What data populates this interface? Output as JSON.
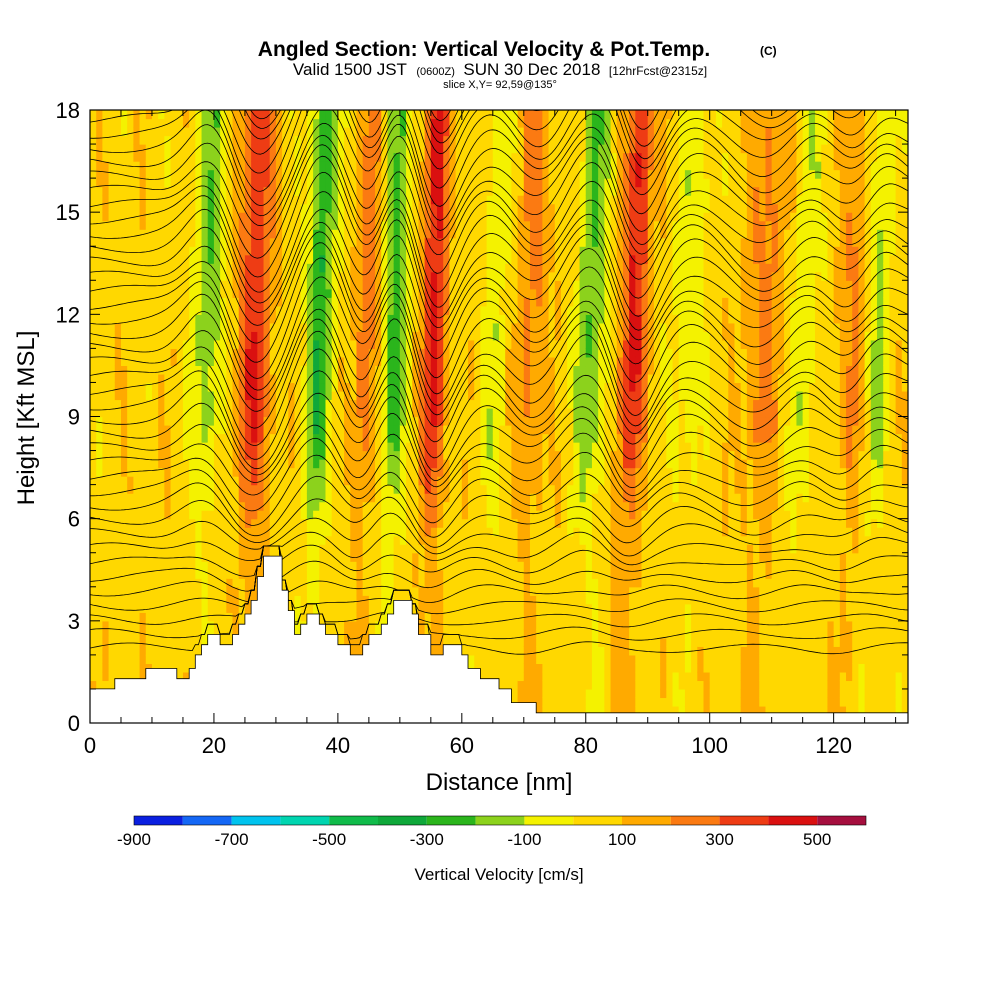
{
  "chart_data": {
    "type": "heatmap",
    "title": "Angled Section: Vertical Velocity & Pot.Temp.",
    "title_mark": "(C)",
    "subtitle_prefix": "Valid 1500 JST",
    "subtitle_utc": "(0600Z)",
    "subtitle_date": "SUN 30 Dec 2018",
    "subtitle_fcst": "[12hrFcst@2315z]",
    "slice_label": "slice X,Y= 92,59@135°",
    "xlabel": "Distance [nm]",
    "ylabel": "Height [Kft MSL]",
    "xlim": [
      0,
      132
    ],
    "ylim": [
      0,
      18
    ],
    "x_ticks": [
      0,
      20,
      40,
      60,
      80,
      100,
      120
    ],
    "y_ticks": [
      0,
      3,
      6,
      9,
      12,
      15,
      18
    ],
    "colorbar": {
      "title": "Vertical Velocity [cm/s]",
      "labels": [
        "-900",
        "-700",
        "-500",
        "-300",
        "-100",
        "100",
        "300",
        "500"
      ],
      "label_values": [
        -900,
        -700,
        -500,
        -300,
        -100,
        100,
        300,
        500
      ],
      "boundaries": [
        -900,
        -800,
        -700,
        -600,
        -500,
        -400,
        -300,
        -200,
        -100,
        0,
        100,
        200,
        300,
        400,
        500,
        600
      ],
      "colors": [
        "#0a1fe0",
        "#1467f5",
        "#00c3ee",
        "#00d5b0",
        "#10bb4a",
        "#0fa83a",
        "#2bb51c",
        "#8cd21c",
        "#f4f200",
        "#ffd800",
        "#ffaa00",
        "#fb7a12",
        "#ee3c14",
        "#da1010",
        "#a50f3e",
        "#6a1296"
      ]
    },
    "terrain_kft": [
      [
        0,
        1.0
      ],
      [
        4,
        1.0
      ],
      [
        4,
        1.3
      ],
      [
        9,
        1.3
      ],
      [
        9,
        1.6
      ],
      [
        14,
        1.6
      ],
      [
        14,
        1.3
      ],
      [
        16,
        1.3
      ],
      [
        16,
        1.6
      ],
      [
        17,
        1.6
      ],
      [
        17,
        2.0
      ],
      [
        18,
        2.0
      ],
      [
        18,
        2.3
      ],
      [
        19,
        2.3
      ],
      [
        19,
        2.6
      ],
      [
        21,
        2.6
      ],
      [
        21,
        2.3
      ],
      [
        23,
        2.3
      ],
      [
        23,
        2.6
      ],
      [
        24,
        2.6
      ],
      [
        24,
        2.9
      ],
      [
        25,
        2.9
      ],
      [
        25,
        3.2
      ],
      [
        26,
        3.2
      ],
      [
        26,
        3.6
      ],
      [
        27,
        3.6
      ],
      [
        27,
        4.3
      ],
      [
        28,
        4.3
      ],
      [
        28,
        4.9
      ],
      [
        31,
        4.9
      ],
      [
        31,
        3.9
      ],
      [
        32,
        3.9
      ],
      [
        32,
        3.3
      ],
      [
        33,
        3.3
      ],
      [
        33,
        2.6
      ],
      [
        34,
        2.6
      ],
      [
        34,
        2.9
      ],
      [
        35,
        2.9
      ],
      [
        35,
        3.2
      ],
      [
        37,
        3.2
      ],
      [
        37,
        2.9
      ],
      [
        38,
        2.9
      ],
      [
        38,
        2.6
      ],
      [
        40,
        2.6
      ],
      [
        40,
        2.3
      ],
      [
        42,
        2.3
      ],
      [
        42,
        2.0
      ],
      [
        44,
        2.0
      ],
      [
        44,
        2.3
      ],
      [
        45,
        2.3
      ],
      [
        45,
        2.6
      ],
      [
        47,
        2.6
      ],
      [
        47,
        2.9
      ],
      [
        48,
        2.9
      ],
      [
        48,
        3.2
      ],
      [
        49,
        3.2
      ],
      [
        49,
        3.6
      ],
      [
        52,
        3.6
      ],
      [
        52,
        3.2
      ],
      [
        53,
        3.2
      ],
      [
        53,
        2.6
      ],
      [
        55,
        2.6
      ],
      [
        55,
        2.0
      ],
      [
        57,
        2.0
      ],
      [
        57,
        2.3
      ],
      [
        60,
        2.3
      ],
      [
        60,
        2.0
      ],
      [
        61,
        2.0
      ],
      [
        61,
        1.6
      ],
      [
        63,
        1.6
      ],
      [
        63,
        1.3
      ],
      [
        66,
        1.3
      ],
      [
        66,
        1.0
      ],
      [
        68,
        1.0
      ],
      [
        68,
        0.6
      ],
      [
        72,
        0.6
      ],
      [
        72,
        0.3
      ],
      [
        132,
        0.3
      ]
    ],
    "updraft_columns": [
      {
        "x": 26,
        "x_top": 27,
        "w": 2.6,
        "amp": 330
      },
      {
        "x": 43,
        "x_top": 46,
        "w": 1.8,
        "amp": 220
      },
      {
        "x": 55,
        "x_top": 56,
        "w": 2.0,
        "amp": 360
      },
      {
        "x": 86,
        "x_top": 89,
        "w": 2.2,
        "amp": 360
      },
      {
        "x": 70,
        "x_top": 72,
        "w": 2.5,
        "amp": 170
      },
      {
        "x": 107,
        "x_top": 110,
        "w": 3.0,
        "amp": 170
      },
      {
        "x": 122,
        "x_top": 124,
        "w": 2.5,
        "amp": 150
      }
    ],
    "downdraft_columns": [
      {
        "x": 36,
        "x_top": 38,
        "w": 2.2,
        "amp": -340
      },
      {
        "x": 48,
        "x_top": 50,
        "w": 2.0,
        "amp": -320
      },
      {
        "x": 18,
        "x_top": 20,
        "w": 2.2,
        "amp": -240
      },
      {
        "x": 80,
        "x_top": 82,
        "w": 2.5,
        "amp": -260
      },
      {
        "x": 64,
        "x_top": 66,
        "w": 2.4,
        "amp": -120
      },
      {
        "x": 95,
        "x_top": 98,
        "w": 2.8,
        "amp": -120
      },
      {
        "x": 114,
        "x_top": 117,
        "w": 2.5,
        "amp": -120
      },
      {
        "x": 126,
        "x_top": 128,
        "w": 2.0,
        "amp": -180
      }
    ],
    "theta_contours_c": {
      "start": -8,
      "step": 1,
      "count": 44,
      "wave_top_kft": 18,
      "wave_bottom_kft": 6
    }
  }
}
